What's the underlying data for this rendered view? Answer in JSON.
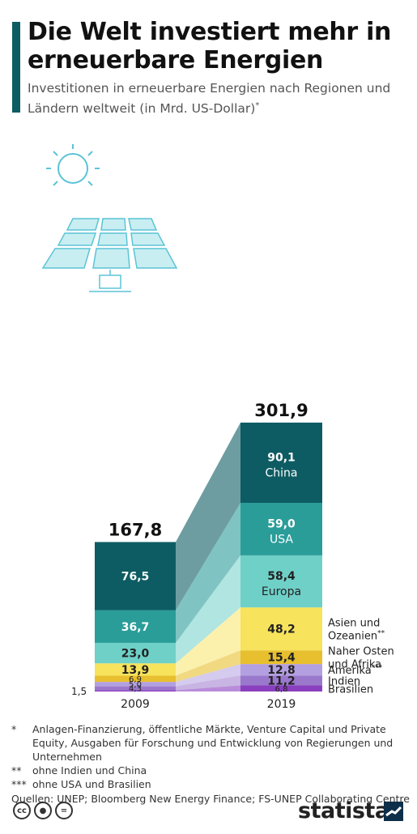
{
  "header": {
    "title": "Die Welt investiert mehr in erneuerbare Energien",
    "subtitle": "Investitionen in erneuerbare Energien nach Regionen und Ländern weltweit (in Mrd. US-Dollar)",
    "subtitle_mark": "*"
  },
  "chart_data": {
    "type": "bar",
    "stacked": true,
    "categories": [
      "2009",
      "2019"
    ],
    "totals": [
      "167,8",
      "301,9"
    ],
    "series": [
      {
        "name": "Brasilien",
        "values": [
          1.5,
          6.8
        ],
        "labels": [
          "1,5",
          "6,8"
        ],
        "color": "#8a3fbf"
      },
      {
        "name": "Indien",
        "values": [
          4.3,
          11.2
        ],
        "labels": [
          "4,3",
          "11,2"
        ],
        "color": "#9a78cc"
      },
      {
        "name": "Amerika***",
        "values": [
          5.0,
          12.8
        ],
        "labels": [
          "5,0",
          "12,8"
        ],
        "color": "#b3a0e0"
      },
      {
        "name": "Naher Osten und Afrika",
        "values": [
          6.9,
          15.4
        ],
        "labels": [
          "6,9",
          "15,4"
        ],
        "color": "#e8bf2e"
      },
      {
        "name": "Asien und Ozeanien**",
        "values": [
          13.9,
          48.2
        ],
        "labels": [
          "13,9",
          "48,2"
        ],
        "color": "#f7e35c"
      },
      {
        "name": "Europa",
        "values": [
          23.0,
          58.4
        ],
        "labels": [
          "23,0",
          "58,4"
        ],
        "color": "#6fd0c8"
      },
      {
        "name": "USA",
        "values": [
          36.7,
          59.0
        ],
        "labels": [
          "36,7",
          "59,0"
        ],
        "color": "#2a9d99"
      },
      {
        "name": "China",
        "values": [
          76.5,
          90.1
        ],
        "labels": [
          "76,5",
          "90,1"
        ],
        "color": "#0d5c63"
      }
    ],
    "legend_placement": "right",
    "grid": false
  },
  "footnotes": [
    {
      "mark": "*",
      "text": "Anlagen-Finanzierung, öffentliche Märkte, Venture Capital und Private Equity, Ausgaben für Forschung und Entwicklung von Regierungen und Unternehmen"
    },
    {
      "mark": "**",
      "text": "ohne Indien und China"
    },
    {
      "mark": "***",
      "text": "ohne USA und Brasilien"
    }
  ],
  "source": "Quellen: UNEP; Bloomberg New Energy Finance; FS-UNEP Collaborating Centre",
  "brand": "statista",
  "icons": [
    "sun-icon",
    "solar-panel-icon",
    "cc-icon",
    "person-icon",
    "equals-icon",
    "statista-logo-icon"
  ]
}
